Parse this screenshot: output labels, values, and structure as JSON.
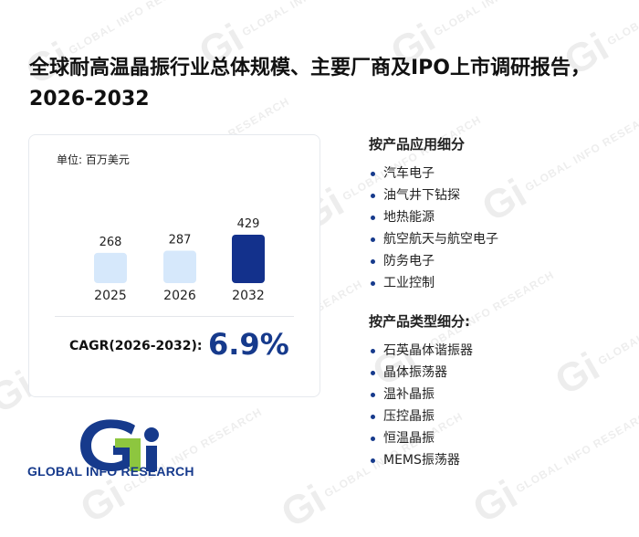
{
  "title": "全球耐高温晶振行业总体规模、主要厂商及IPO上市调研报告，2026-2032",
  "watermark": {
    "mark": "Gi",
    "text": "GLOBAL INFO RESEARCH"
  },
  "card": {
    "unit": "单位: 百万美元",
    "cagr_label": "CAGR(2026-2032):",
    "cagr_value": "6.9%"
  },
  "chart_data": {
    "type": "bar",
    "categories": [
      "2025",
      "2026",
      "2032"
    ],
    "values": [
      268,
      287,
      429
    ],
    "unit": "单位: 百万美元",
    "ylim": [
      0,
      429
    ],
    "grid": false,
    "colors": [
      "#d6e8fb",
      "#d6e8fb",
      "#13318c"
    ]
  },
  "segments": {
    "application": {
      "title": "按产品应用细分",
      "items": [
        "汽车电子",
        "油气井下钻探",
        "地热能源",
        "航空航天与航空电子",
        "防务电子",
        "工业控制"
      ]
    },
    "type": {
      "title": "按产品类型细分:",
      "items": [
        "石英晶体谐振器",
        "晶体振荡器",
        "温补晶振",
        "压控晶振",
        "恒温晶振",
        "MEMS振荡器"
      ]
    }
  },
  "logo": {
    "text": "GLOBAL INFO RESEARCH",
    "accent_blue": "#163a8c",
    "accent_green": "#8dc63f"
  }
}
